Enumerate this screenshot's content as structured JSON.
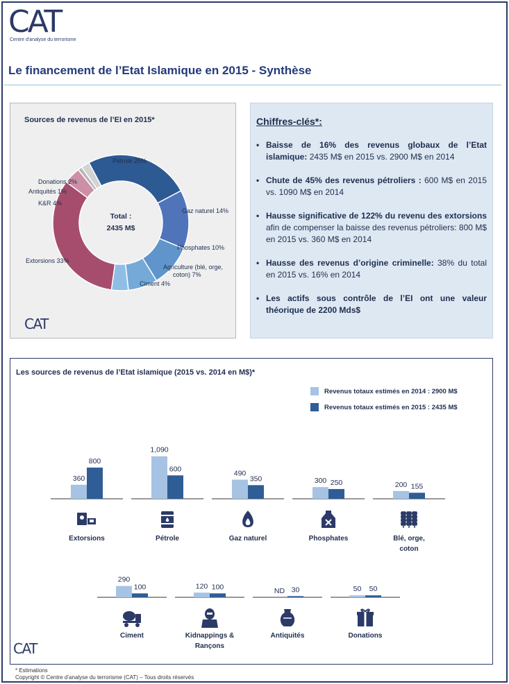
{
  "logo": {
    "main": "CAT",
    "sub": "Centre d'analyse du terrorisme"
  },
  "page_title": "Le financement de l’Etat Islamique en 2015 - Synthèse",
  "donut": {
    "title": "Sources de revenus de l’EI en 2015*",
    "center_line1": "Total :",
    "center_line2": "2435 M$"
  },
  "key_figures": {
    "title": "Chiffres-clés*:",
    "items": [
      {
        "bold": "Baisse de 16% des revenus globaux de l’Etat islamique:",
        "text": " 2435 M$ en 2015 vs. 2900 M$ en 2014"
      },
      {
        "bold": "Chute de 45% des revenus pétroliers :",
        "text": " 600 M$ en 2015 vs. 1090 M$ en 2014"
      },
      {
        "bold": "Hausse significative de 122% du revenu des extorsions",
        "text": " afin de compenser la baisse des revenus pétroliers: 800 M$ en 2015 vs. 360 M$ en 2014"
      },
      {
        "bold": "Hausse des revenus d’origine criminelle:",
        "text": " 38% du total en 2015 vs. 16% en 2014"
      },
      {
        "bold": "Les actifs sous contrôle de l’EI ont une valeur théorique de  2200 Mds$",
        "text": ""
      }
    ]
  },
  "bar_section": {
    "title": "Les sources de revenus de l’Etat islamique (2015 vs. 2014 en  M$)*",
    "legend_2014": "Revenus totaux estimés en 2014 : 2900 M$",
    "legend_2015": "Revenus totaux estimés en 2015 : 2435 M$"
  },
  "footnote": {
    "line1": "* Estimations",
    "line2": "Copyright © Centre d’analyse du terrorisme (CAT) – Tous droits réservés"
  },
  "colors": {
    "c2014": "#a7c3e3",
    "c2015": "#2f5d95",
    "petrole": "#2e5a93",
    "gaz": "#4f74ba",
    "phosphates": "#5f95cb",
    "agriculture": "#74a9d8",
    "ciment": "#8fbde5",
    "extorsions": "#a64d6e",
    "kr": "#cc8fa6",
    "antiquites": "#b7b7b7",
    "donations": "#d3d3d3"
  },
  "chart_data": [
    {
      "type": "pie",
      "title": "Sources de revenus de l’EI en 2015*",
      "slices": [
        {
          "label": "Pétrole 25%",
          "value": 25,
          "color_key": "petrole"
        },
        {
          "label": "Gaz naturel 14%",
          "value": 14,
          "color_key": "gaz"
        },
        {
          "label": "Phosphates 10%",
          "value": 10,
          "color_key": "phosphates"
        },
        {
          "label": "Agriculture (blé, orge, coton) 7%",
          "value": 7,
          "color_key": "agriculture"
        },
        {
          "label": "Ciment 4%",
          "value": 4,
          "color_key": "ciment"
        },
        {
          "label": "Extorsions 33%",
          "value": 33,
          "color_key": "extorsions"
        },
        {
          "label": "K&R 4%",
          "value": 4,
          "color_key": "kr"
        },
        {
          "label": "Antiquités 1%",
          "value": 1,
          "color_key": "antiquites"
        },
        {
          "label": "Donations 2%",
          "value": 2,
          "color_key": "donations"
        }
      ]
    },
    {
      "type": "bar",
      "title": "Les sources de revenus de l’Etat islamique (2015 vs. 2014 en  M$)*",
      "series": [
        {
          "name": "Revenus totaux estimés en 2014 : 2900 M$"
        },
        {
          "name": "Revenus totaux estimés en 2015 : 2435 M$"
        }
      ],
      "rows": [
        [
          {
            "category": "Extorsions",
            "v2014": 360,
            "v2015": 800,
            "l2014": "360",
            "l2015": "800",
            "icon": "extortion-icon"
          },
          {
            "category": "Pétrole",
            "v2014": 1090,
            "v2015": 600,
            "l2014": "1,090",
            "l2015": "600",
            "icon": "oil-barrel-icon"
          },
          {
            "category": "Gaz naturel",
            "v2014": 490,
            "v2015": 350,
            "l2014": "490",
            "l2015": "350",
            "icon": "gas-flame-icon"
          },
          {
            "category": "Phosphates",
            "v2014": 300,
            "v2015": 250,
            "l2014": "300",
            "l2015": "250",
            "icon": "chemical-bottle-icon"
          },
          {
            "category": "Blé, orge, coton",
            "v2014": 200,
            "v2015": 155,
            "l2014": "200",
            "l2015": "155",
            "icon": "wheat-icon"
          }
        ],
        [
          {
            "category": "Ciment",
            "v2014": 290,
            "v2015": 100,
            "l2014": "290",
            "l2015": "100",
            "icon": "cement-truck-icon"
          },
          {
            "category": "Kidnappings & Rançons",
            "v2014": 120,
            "v2015": 100,
            "l2014": "120",
            "l2015": "100",
            "icon": "kidnapper-icon"
          },
          {
            "category": "Antiquités",
            "v2014": 0,
            "v2015": 30,
            "l2014": "ND",
            "l2015": "30",
            "icon": "vase-icon"
          },
          {
            "category": "Donations",
            "v2014": 50,
            "v2015": 50,
            "l2014": "50",
            "l2015": "50",
            "icon": "gift-icon"
          }
        ]
      ]
    }
  ]
}
